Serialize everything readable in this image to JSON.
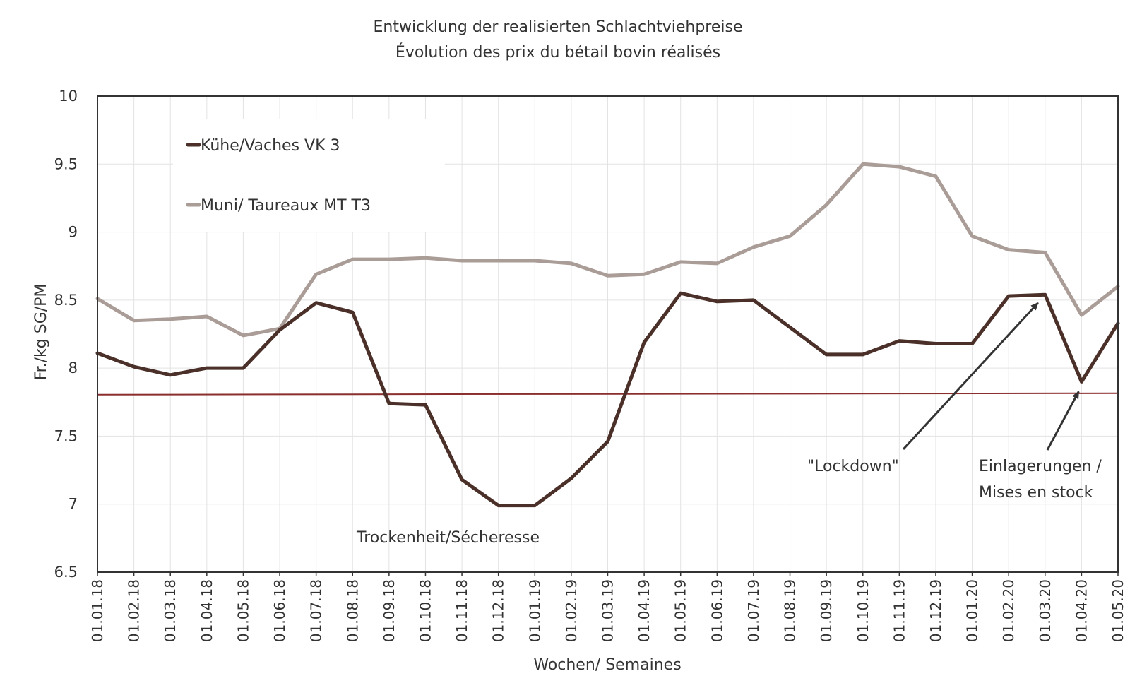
{
  "chart_data": {
    "type": "line",
    "title": [
      "Entwicklung der realisierten Schlachtviehpreise",
      "Évolution des prix du bétail bovin réalisés"
    ],
    "xlabel": "Wochen/ Semaines",
    "ylabel": "Fr./kg SG/PM",
    "ylim": [
      6.5,
      10
    ],
    "yticks": [
      "6.5",
      "7",
      "7.5",
      "8",
      "8.5",
      "9",
      "9.5",
      "10"
    ],
    "grid": true,
    "legend_position": "top-left",
    "categories": [
      "01.01.18",
      "01.02.18",
      "01.03.18",
      "01.04.18",
      "01.05.18",
      "01.06.18",
      "01.07.18",
      "01.08.18",
      "01.09.18",
      "01.10.18",
      "01.11.18",
      "01.12.18",
      "01.01.19",
      "01.02.19",
      "01.03.19",
      "01.04.19",
      "01.05.19",
      "01.06.19",
      "01.07.19",
      "01.08.19",
      "01.09.19",
      "01.10.19",
      "01.11.19",
      "01.12.19",
      "01.01.20",
      "01.02.20",
      "01.03.20",
      "01.04.20",
      "01.05.20"
    ],
    "series": [
      {
        "name": "Kühe/Vaches VK 3",
        "color": "#4a3028",
        "values": [
          8.11,
          8.01,
          7.95,
          8.0,
          8.0,
          8.28,
          8.48,
          8.41,
          7.74,
          7.73,
          7.18,
          6.99,
          6.99,
          7.19,
          7.46,
          8.19,
          8.55,
          8.49,
          8.5,
          8.3,
          8.1,
          8.1,
          8.2,
          8.18,
          8.18,
          8.53,
          8.54,
          7.9,
          8.33
        ]
      },
      {
        "name": "Muni/ Taureaux MT T3",
        "color": "#aa9c96",
        "values": [
          8.51,
          8.35,
          8.36,
          8.38,
          8.24,
          8.29,
          8.69,
          8.8,
          8.8,
          8.81,
          8.79,
          8.79,
          8.79,
          8.77,
          8.68,
          8.69,
          8.78,
          8.77,
          8.89,
          8.97,
          9.2,
          9.5,
          9.48,
          9.41,
          8.97,
          8.87,
          8.85,
          8.39,
          8.6
        ]
      }
    ],
    "reference_line": {
      "value": 7.81,
      "color": "#8b2e2e"
    },
    "annotations": [
      {
        "text": "Trockenheit/Sécheresse"
      },
      {
        "text": "\"Lockdown\"",
        "arrow_to": {
          "x": "01.03.20",
          "y": 8.48
        }
      },
      {
        "text": [
          "Einlagerungen /",
          "Mises en stock"
        ],
        "arrow_to": {
          "x": "01.04.20",
          "y": 7.88
        }
      }
    ]
  }
}
